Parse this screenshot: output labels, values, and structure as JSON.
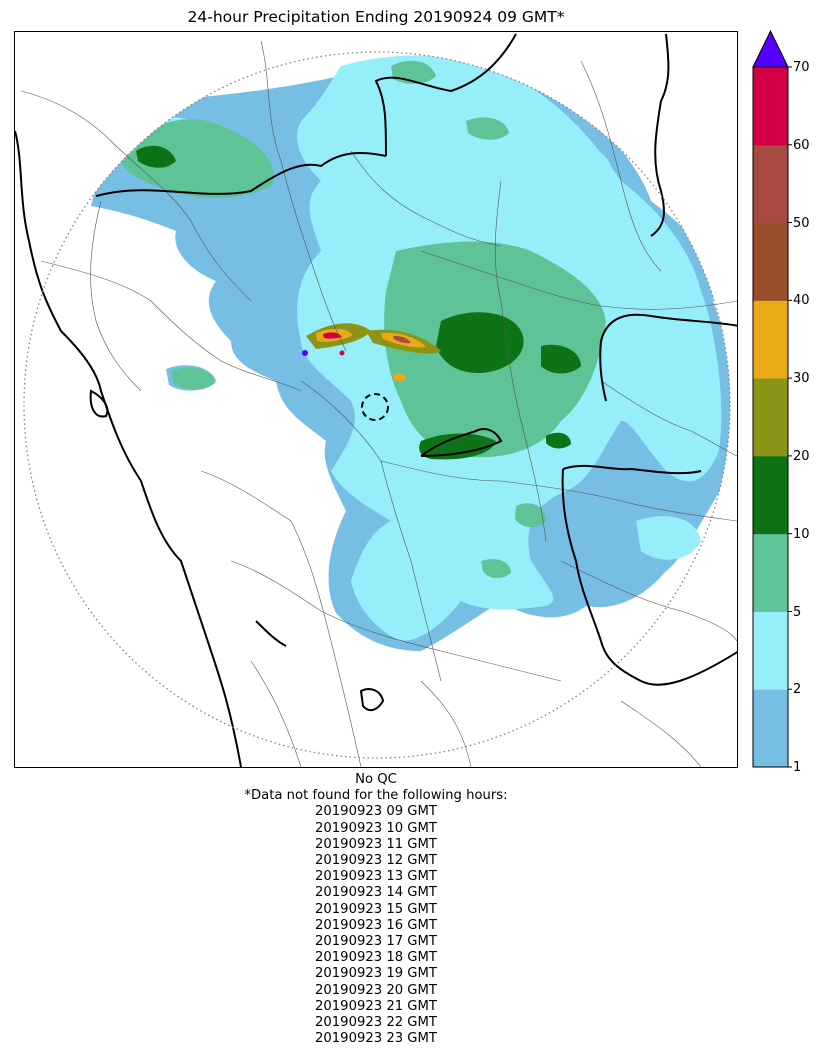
{
  "title": "24-hour Precipitation Ending 20190924 09 GMT*",
  "colorbar": {
    "ticks": [
      "1",
      "2",
      "5",
      "10",
      "20",
      "30",
      "40",
      "50",
      "60",
      "70"
    ],
    "bins": [
      {
        "from": "1",
        "to": "2",
        "color": "#76bee4"
      },
      {
        "from": "2",
        "to": "5",
        "color": "#96eefb"
      },
      {
        "from": "5",
        "to": "10",
        "color": "#5ec396"
      },
      {
        "from": "10",
        "to": "20",
        "color": "#0e7316"
      },
      {
        "from": "20",
        "to": "30",
        "color": "#8c9418"
      },
      {
        "from": "30",
        "to": "40",
        "color": "#e9aa17"
      },
      {
        "from": "40",
        "to": "50",
        "color": "#99502a"
      },
      {
        "from": "50",
        "to": "60",
        "color": "#a84a42"
      },
      {
        "from": "60",
        "to": "70",
        "color": "#d30046"
      },
      {
        "from": "70",
        "to": "",
        "color": "#5500ff"
      }
    ],
    "extend": "max"
  },
  "notes": {
    "qc": "No QC",
    "missing_header": "*Data not found for the following hours:",
    "missing_hours": [
      "20190923 09 GMT",
      "20190923 10 GMT",
      "20190923 11 GMT",
      "20190923 12 GMT",
      "20190923 13 GMT",
      "20190923 14 GMT",
      "20190923 15 GMT",
      "20190923 16 GMT",
      "20190923 17 GMT",
      "20190923 18 GMT",
      "20190923 19 GMT",
      "20190923 20 GMT",
      "20190923 21 GMT",
      "20190923 22 GMT",
      "20190923 23 GMT"
    ]
  }
}
